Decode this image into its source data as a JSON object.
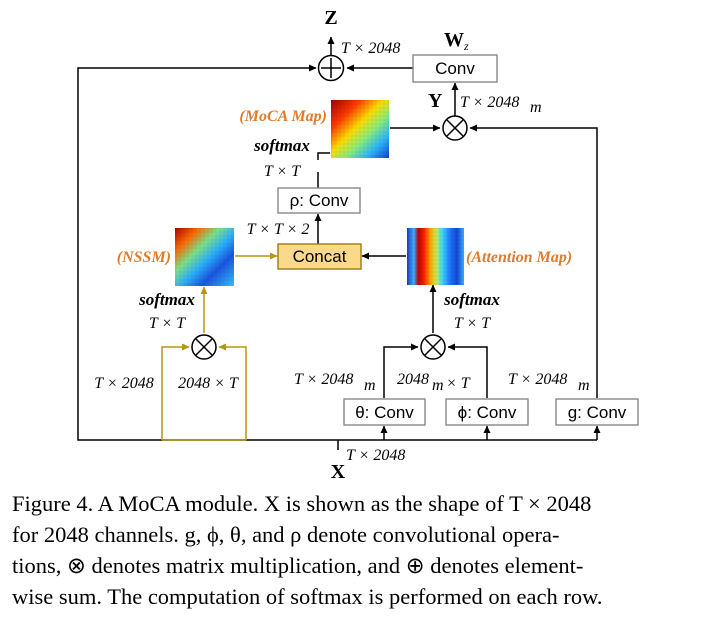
{
  "diagram": {
    "nodes": {
      "conv_wz": "Conv",
      "rho_conv": "ρ: Conv",
      "concat": "Concat",
      "theta_conv": "θ: Conv",
      "phi_conv": "ϕ: Conv",
      "g_conv": "g: Conv"
    },
    "labels": {
      "z": "Z",
      "wz": "W",
      "wz_sub": "z",
      "y": "Y",
      "x": "X",
      "t_2048_top": "T × 2048",
      "t_2048_m_y_main": "T × 2048",
      "t_2048_m_y_den": "m",
      "moca_map": "(MoCA Map)",
      "nssm": "(NSSM)",
      "attention_map": "(Attention Map)",
      "softmax_top": "softmax",
      "txt_top": "T × T",
      "txtx2": "T × T × 2",
      "softmax_left": "softmax",
      "txt_left": "T × T",
      "softmax_right": "softmax",
      "txt_right": "T × T",
      "left_in_a": "T × 2048",
      "left_in_b": "2048 × T",
      "theta_dim_main": "T × 2048",
      "theta_dim_den": "m",
      "phi_dim_main": "2048",
      "phi_dim_den": "m",
      "phi_dim_tail": "× T",
      "g_dim_main": "T × 2048",
      "g_dim_den": "m",
      "x_dim": "T × 2048"
    },
    "colors": {
      "orange_label": "#e07b2c",
      "concat_fill": "#fad98a",
      "concat_border": "#a07a10",
      "gold_line": "#b8960c",
      "box_border": "#888888",
      "line": "#000000"
    }
  },
  "caption": {
    "lines": [
      "Figure 4. A MoCA module. X is shown as the shape of T × 2048",
      "for 2048 channels.  g, ϕ, θ, and ρ denote convolutional opera-",
      "tions, ⊗ denotes matrix multiplication, and ⊕ denotes element-",
      "wise sum. The computation of softmax is performed on each row."
    ]
  }
}
